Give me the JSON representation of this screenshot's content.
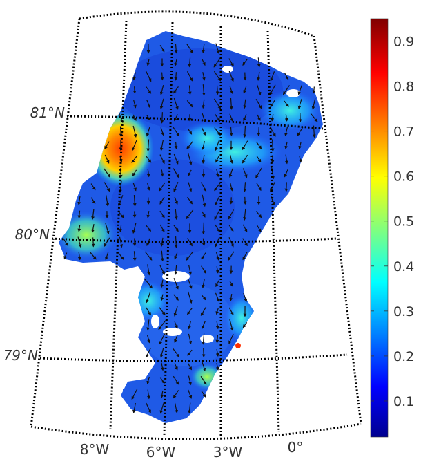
{
  "map": {
    "latitude_labels": [
      "81°N",
      "80°N",
      "79°N"
    ],
    "longitude_labels": [
      "8°W",
      "6°W",
      "3°W",
      "0°"
    ],
    "graticule_style": "dotted",
    "field": "speed",
    "vectors": "arrows showing direction",
    "high_values_region": "west of 81°N near 8°W"
  },
  "colorbar": {
    "colormap": "jet",
    "min": 0.02,
    "max": 0.95,
    "ticks": [
      "0.1",
      "0.2",
      "0.3",
      "0.4",
      "0.5",
      "0.6",
      "0.7",
      "0.8",
      "0.9"
    ],
    "colors": [
      "#00008f",
      "#0000ff",
      "#00ffff",
      "#ffff00",
      "#ff0000",
      "#800000"
    ]
  }
}
